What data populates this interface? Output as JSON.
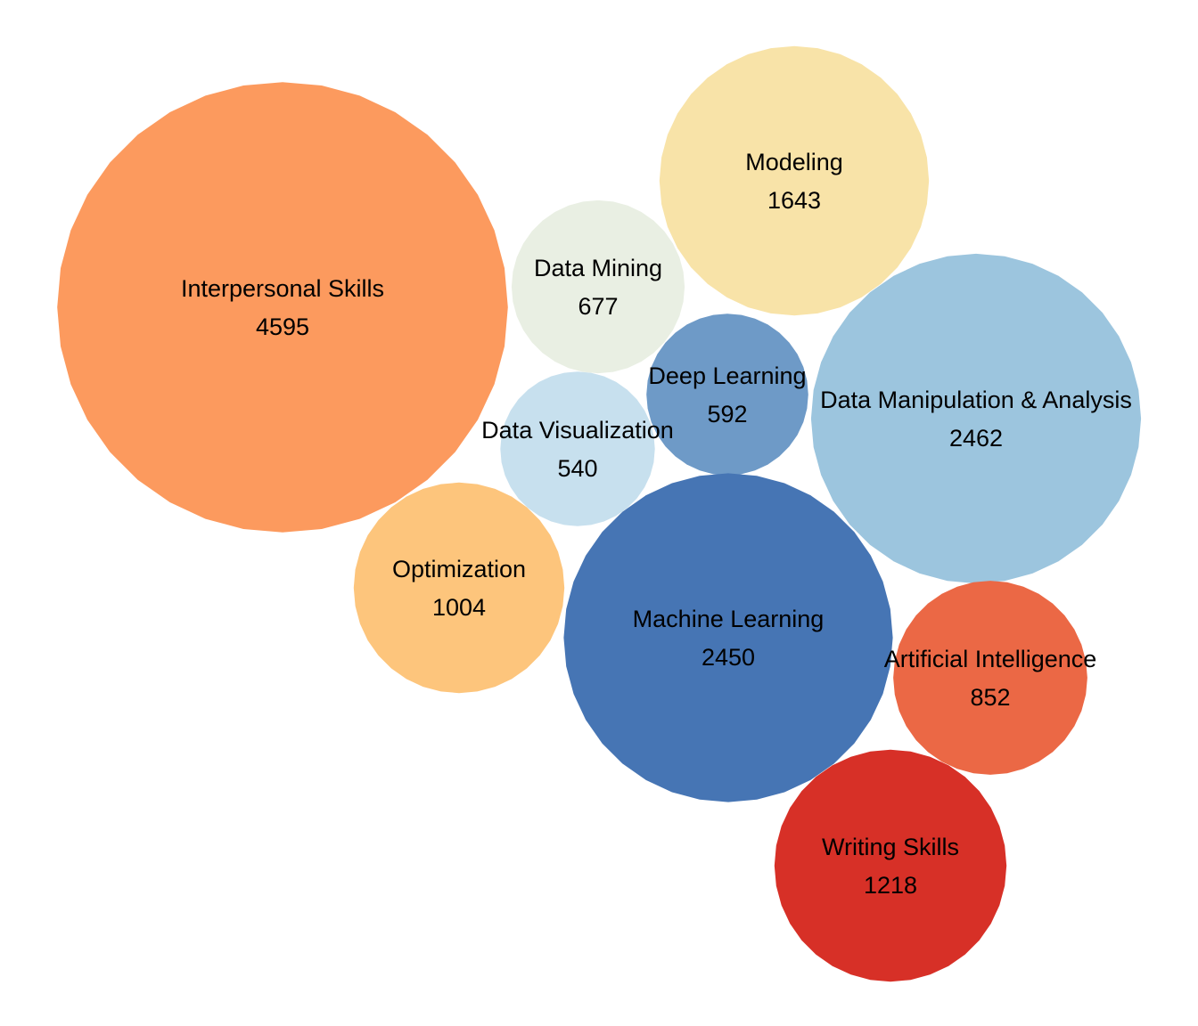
{
  "chart_data": {
    "type": "bubble",
    "title": "",
    "bubbles": [
      {
        "label": "Interpersonal Skills",
        "value": 4595,
        "color": "#FC9A5E"
      },
      {
        "label": "Modeling",
        "value": 1643,
        "color": "#F8E3A8"
      },
      {
        "label": "Data Mining",
        "value": 677,
        "color": "#E9EFE3"
      },
      {
        "label": "Deep Learning",
        "value": 592,
        "color": "#6E9AC7"
      },
      {
        "label": "Data Manipulation & Analysis",
        "value": 2462,
        "color": "#9CC5DE"
      },
      {
        "label": "Data Visualization",
        "value": 540,
        "color": "#C7E0EE"
      },
      {
        "label": "Optimization",
        "value": 1004,
        "color": "#FDC57C"
      },
      {
        "label": "Machine Learning",
        "value": 2450,
        "color": "#4675B4"
      },
      {
        "label": "Artificial Intelligence",
        "value": 852,
        "color": "#EB6845"
      },
      {
        "label": "Writing Skills",
        "value": 1218,
        "color": "#D73027"
      }
    ]
  }
}
